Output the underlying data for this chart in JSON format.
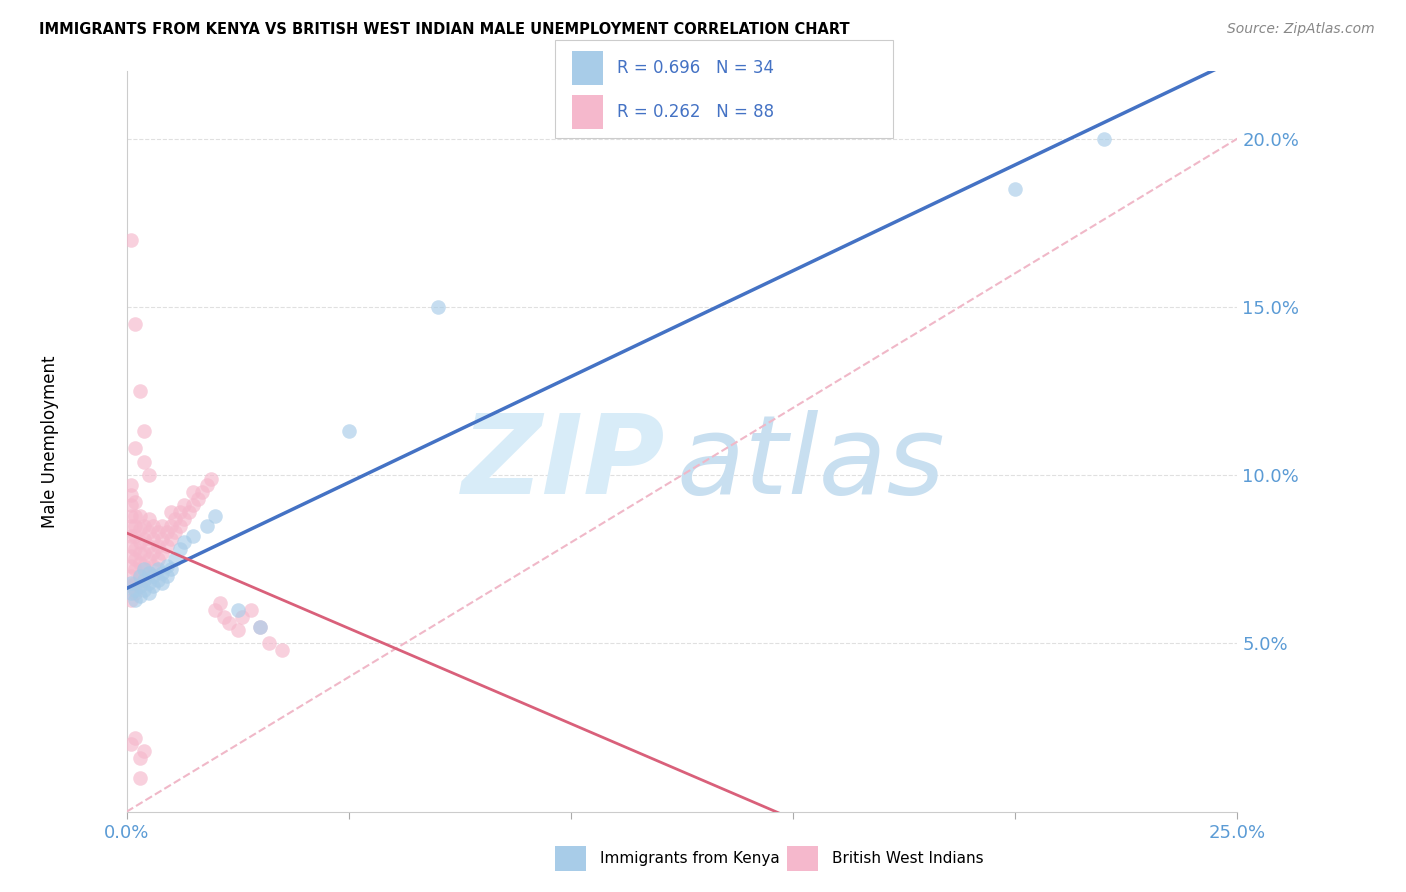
{
  "title": "IMMIGRANTS FROM KENYA VS BRITISH WEST INDIAN MALE UNEMPLOYMENT CORRELATION CHART",
  "source": "Source: ZipAtlas.com",
  "ylabel": "Male Unemployment",
  "xlim": [
    0.0,
    0.25
  ],
  "ylim": [
    0.0,
    0.22
  ],
  "xtick_vals": [
    0.0,
    0.05,
    0.1,
    0.15,
    0.2,
    0.25
  ],
  "xtick_labels": [
    "0.0%",
    "",
    "",
    "",
    "",
    "25.0%"
  ],
  "ytick_vals": [
    0.05,
    0.1,
    0.15,
    0.2
  ],
  "ytick_labels": [
    "5.0%",
    "10.0%",
    "15.0%",
    "20.0%"
  ],
  "scatter_kenya_color": "#a8cce8",
  "scatter_bwi_color": "#f5b8cc",
  "regression_kenya_color": "#4472c4",
  "regression_bwi_color": "#d9607a",
  "diagonal_color": "#f0b8c8",
  "grid_color": "#e0e0e0",
  "axis_tick_color": "#5b9bd5",
  "scatter_size": 110,
  "scatter_alpha": 0.65,
  "watermark_zip_color": "#d8ecf8",
  "watermark_atlas_color": "#c8dff0",
  "legend_text_color": "#4472c4",
  "kenya_x": [
    0.001,
    0.001,
    0.002,
    0.002,
    0.003,
    0.003,
    0.003,
    0.004,
    0.004,
    0.004,
    0.005,
    0.005,
    0.005,
    0.006,
    0.006,
    0.007,
    0.007,
    0.008,
    0.008,
    0.009,
    0.009,
    0.01,
    0.011,
    0.012,
    0.013,
    0.015,
    0.018,
    0.02,
    0.025,
    0.03,
    0.05,
    0.07,
    0.2,
    0.22
  ],
  "kenya_y": [
    0.065,
    0.068,
    0.063,
    0.066,
    0.064,
    0.067,
    0.07,
    0.066,
    0.069,
    0.072,
    0.065,
    0.068,
    0.071,
    0.067,
    0.07,
    0.069,
    0.072,
    0.068,
    0.071,
    0.07,
    0.073,
    0.072,
    0.075,
    0.078,
    0.08,
    0.082,
    0.085,
    0.088,
    0.06,
    0.055,
    0.113,
    0.15,
    0.185,
    0.2
  ],
  "bwi_x": [
    0.001,
    0.001,
    0.001,
    0.001,
    0.001,
    0.001,
    0.001,
    0.001,
    0.001,
    0.001,
    0.001,
    0.001,
    0.002,
    0.002,
    0.002,
    0.002,
    0.002,
    0.002,
    0.002,
    0.002,
    0.002,
    0.003,
    0.003,
    0.003,
    0.003,
    0.003,
    0.003,
    0.003,
    0.004,
    0.004,
    0.004,
    0.004,
    0.004,
    0.005,
    0.005,
    0.005,
    0.005,
    0.005,
    0.006,
    0.006,
    0.006,
    0.006,
    0.007,
    0.007,
    0.007,
    0.008,
    0.008,
    0.008,
    0.009,
    0.009,
    0.01,
    0.01,
    0.01,
    0.011,
    0.011,
    0.012,
    0.012,
    0.013,
    0.013,
    0.014,
    0.015,
    0.015,
    0.016,
    0.017,
    0.018,
    0.019,
    0.02,
    0.021,
    0.022,
    0.023,
    0.025,
    0.026,
    0.028,
    0.03,
    0.032,
    0.035,
    0.001,
    0.002,
    0.003,
    0.004,
    0.002,
    0.003,
    0.004,
    0.003,
    0.005,
    0.004,
    0.002,
    0.001
  ],
  "bwi_y": [
    0.063,
    0.067,
    0.07,
    0.073,
    0.076,
    0.079,
    0.082,
    0.085,
    0.088,
    0.091,
    0.094,
    0.097,
    0.065,
    0.068,
    0.072,
    0.075,
    0.078,
    0.082,
    0.085,
    0.088,
    0.092,
    0.067,
    0.07,
    0.074,
    0.077,
    0.08,
    0.084,
    0.088,
    0.069,
    0.073,
    0.077,
    0.081,
    0.085,
    0.071,
    0.075,
    0.079,
    0.083,
    0.087,
    0.073,
    0.077,
    0.081,
    0.085,
    0.075,
    0.079,
    0.083,
    0.077,
    0.081,
    0.085,
    0.079,
    0.083,
    0.081,
    0.085,
    0.089,
    0.083,
    0.087,
    0.085,
    0.089,
    0.087,
    0.091,
    0.089,
    0.091,
    0.095,
    0.093,
    0.095,
    0.097,
    0.099,
    0.06,
    0.062,
    0.058,
    0.056,
    0.054,
    0.058,
    0.06,
    0.055,
    0.05,
    0.048,
    0.17,
    0.145,
    0.125,
    0.113,
    0.022,
    0.016,
    0.018,
    0.01,
    0.1,
    0.104,
    0.108,
    0.02
  ]
}
